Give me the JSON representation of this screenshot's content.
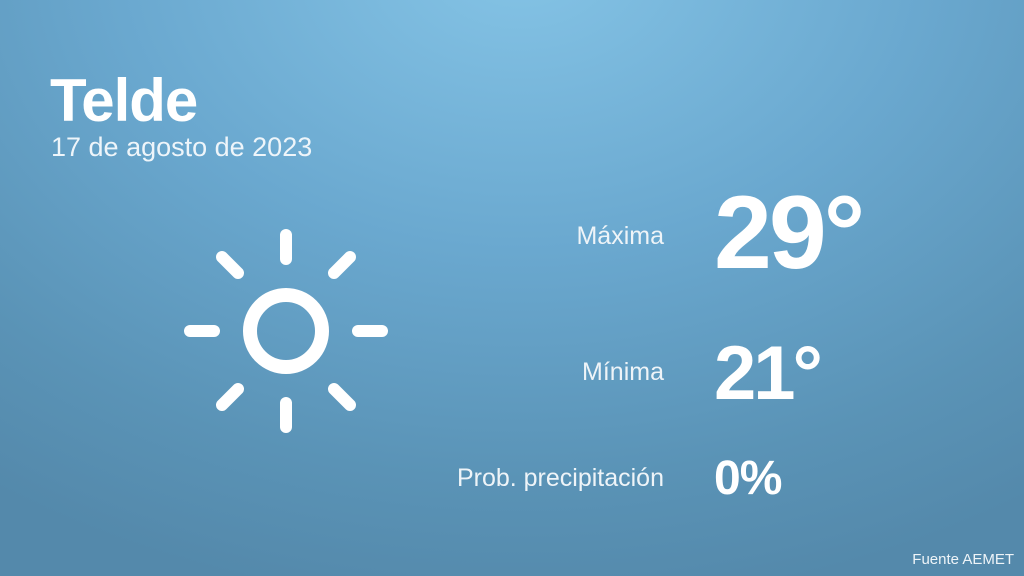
{
  "header": {
    "city": "Telde",
    "date": "17 de agosto de 2023"
  },
  "weather": {
    "icon": "sun-icon",
    "max": {
      "label": "Máxima",
      "value": "29°"
    },
    "min": {
      "label": "Mínima",
      "value": "21°"
    },
    "precip": {
      "label": "Prob. precipitación",
      "value": "0%"
    }
  },
  "footer": {
    "source": "Fuente AEMET"
  },
  "colors": {
    "background_top": "#85c4e6",
    "background_bottom": "#5489ab",
    "text": "#ffffff"
  }
}
